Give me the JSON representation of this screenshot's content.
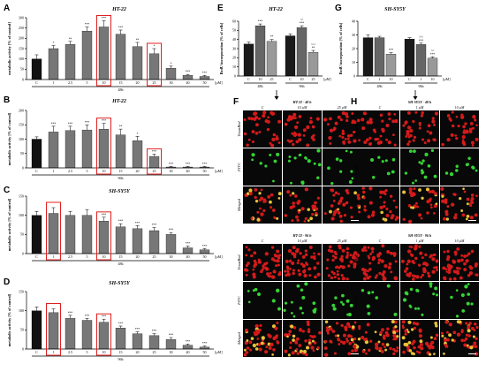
{
  "chart_data": [
    {
      "id": "A",
      "panel_label": "A",
      "title": "HT-22",
      "type": "bar",
      "ylabel": "metabolic activity [% of control]",
      "ylim": [
        0,
        300
      ],
      "yticks": [
        0,
        50,
        100,
        150,
        200,
        250,
        300
      ],
      "categories": [
        "C",
        "1",
        "2.5",
        "5",
        "10",
        "15",
        "20",
        "25",
        "30",
        "40",
        "50"
      ],
      "values": [
        100,
        150,
        170,
        235,
        255,
        220,
        160,
        125,
        55,
        20,
        15
      ],
      "errors": [
        20,
        15,
        15,
        20,
        30,
        20,
        20,
        25,
        10,
        5,
        5
      ],
      "sig": [
        "",
        "*",
        "**",
        "***",
        "***",
        "***",
        "**",
        "*",
        "*",
        "***",
        "***"
      ],
      "unit": "[µM]",
      "time": "48h",
      "highlight": [
        "10",
        "25"
      ]
    },
    {
      "id": "B",
      "panel_label": "B",
      "title": "HT-22",
      "type": "bar",
      "ylabel": "metabolic activity [% of control]",
      "ylim": [
        0,
        200
      ],
      "yticks": [
        0,
        50,
        100,
        150,
        200
      ],
      "categories": [
        "C",
        "1",
        "2.5",
        "5",
        "10",
        "15",
        "20",
        "25",
        "30",
        "40",
        "50"
      ],
      "values": [
        100,
        125,
        130,
        132,
        135,
        115,
        95,
        40,
        3,
        3,
        3
      ],
      "errors": [
        8,
        20,
        15,
        18,
        20,
        20,
        15,
        8,
        2,
        2,
        2
      ],
      "sig": [
        "",
        "***",
        "***",
        "***",
        "***",
        "**",
        "*",
        "***",
        "***",
        "***",
        "***"
      ],
      "unit": "[µM]",
      "time": "96h",
      "highlight": [
        "10",
        "25"
      ]
    },
    {
      "id": "C",
      "panel_label": "C",
      "title": "SH-SY5Y",
      "type": "bar",
      "ylabel": "metabolic activity [% of control]",
      "ylim": [
        0,
        150
      ],
      "yticks": [
        0,
        50,
        100,
        150
      ],
      "categories": [
        "C",
        "1",
        "2.5",
        "5",
        "10",
        "15",
        "20",
        "25",
        "30",
        "40",
        "50"
      ],
      "values": [
        100,
        105,
        100,
        100,
        85,
        70,
        65,
        60,
        50,
        15,
        10
      ],
      "errors": [
        10,
        15,
        10,
        15,
        10,
        8,
        8,
        8,
        5,
        5,
        3
      ],
      "sig": [
        "",
        "",
        "",
        "",
        "***",
        "***",
        "***",
        "***",
        "***",
        "***",
        "***"
      ],
      "unit": "[µM]",
      "time": "48h",
      "highlight": [
        "1",
        "10"
      ]
    },
    {
      "id": "D",
      "panel_label": "D",
      "title": "SH-SY5Y",
      "type": "bar",
      "ylabel": "metabolic activity [% of control]",
      "ylim": [
        0,
        150
      ],
      "yticks": [
        0,
        50,
        100,
        150
      ],
      "categories": [
        "C",
        "1",
        "2.5",
        "5",
        "10",
        "15",
        "20",
        "25",
        "30",
        "40",
        "50"
      ],
      "values": [
        100,
        95,
        80,
        75,
        70,
        55,
        40,
        35,
        25,
        10,
        5
      ],
      "errors": [
        10,
        10,
        8,
        5,
        8,
        5,
        5,
        5,
        5,
        3,
        3
      ],
      "sig": [
        "",
        "",
        "***",
        "***",
        "***",
        "***",
        "***",
        "***",
        "***",
        "***",
        "***"
      ],
      "unit": "[µM]",
      "time": "96h",
      "highlight": [
        "1",
        "10"
      ]
    },
    {
      "id": "E",
      "panel_label": "E",
      "title": "HT-22",
      "type": "bar",
      "ylabel": "BrdU incorporation [% of cells]",
      "ylim": [
        0,
        60
      ],
      "yticks": [
        0,
        10,
        20,
        30,
        40,
        50,
        60
      ],
      "categories": [
        "C",
        "10",
        "25",
        "C",
        "10",
        "25"
      ],
      "values": [
        35,
        55,
        38,
        44,
        53,
        26
      ],
      "errors": [
        2,
        2,
        2,
        2,
        2,
        2
      ],
      "colors": [
        "#1a1a1a",
        "#666666",
        "#999999",
        "#1a1a1a",
        "#666666",
        "#999999"
      ],
      "sig": [
        "",
        "***",
        "**",
        "",
        "^^\n***",
        "^^^\n**"
      ],
      "groups": [
        {
          "label": "48h",
          "from": 0,
          "to": 2
        },
        {
          "label": "96h",
          "from": 3,
          "to": 5
        }
      ],
      "unit": "[µM]"
    },
    {
      "id": "G",
      "panel_label": "G",
      "title": "SH-SY5Y",
      "type": "bar",
      "ylabel": "BrdU incorporation [% of cells]",
      "ylim": [
        0,
        40
      ],
      "yticks": [
        0,
        10,
        20,
        30,
        40
      ],
      "categories": [
        "C",
        "1",
        "10",
        "C",
        "1",
        "10"
      ],
      "values": [
        28,
        28,
        16,
        27,
        23,
        13
      ],
      "errors": [
        2,
        1,
        1,
        1,
        1,
        1
      ],
      "colors": [
        "#1a1a1a",
        "#666666",
        "#999999",
        "#1a1a1a",
        "#666666",
        "#999999"
      ],
      "sig": [
        "",
        "",
        "***",
        "",
        "^^^\n***",
        "^^\n***"
      ],
      "groups": [
        {
          "label": "48h",
          "from": 0,
          "to": 2
        },
        {
          "label": "96h",
          "from": 3,
          "to": 5
        }
      ],
      "unit": "[µM]"
    }
  ],
  "micro": {
    "F": {
      "panel_label": "F",
      "blocks": [
        {
          "title": "HT-22 - 48 h",
          "cols": [
            "C",
            "10 µM",
            "25 µM"
          ],
          "rows": [
            "TexasRed",
            "FITC",
            "Merged"
          ],
          "scale": "100 µm"
        },
        {
          "title": "HT-22 - 96 h",
          "cols": [
            "C",
            "10 µM",
            "25 µM"
          ],
          "rows": [
            "TexasRed",
            "FITC",
            "Merged"
          ],
          "scale": "100 µm"
        }
      ]
    },
    "H": {
      "panel_label": "H",
      "blocks": [
        {
          "title": "SH-SY5Y - 48 h",
          "cols": [
            "C",
            "1 µM",
            "10 µM"
          ],
          "rows": [
            "TexasRed",
            "FITC",
            "Merged"
          ],
          "scale": "100 µm"
        },
        {
          "title": "SH-SY5Y - 96 h",
          "cols": [
            "C",
            "1 µM",
            "10 µM"
          ],
          "rows": [
            "TexasRed",
            "FITC",
            "Merged"
          ],
          "scale": "100 µm"
        }
      ]
    }
  }
}
